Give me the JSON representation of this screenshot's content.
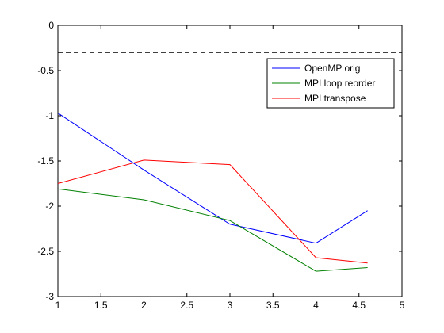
{
  "chart_data": {
    "type": "line",
    "title": "",
    "xlabel": "",
    "ylabel": "",
    "xlim": [
      1,
      5
    ],
    "ylim": [
      -3,
      0
    ],
    "x_ticks": [
      1,
      1.5,
      2,
      2.5,
      3,
      3.5,
      4,
      4.5,
      5
    ],
    "x_tick_labels": [
      "1",
      "1.5",
      "2",
      "2.5",
      "3",
      "3.5",
      "4",
      "4.5",
      "5"
    ],
    "y_ticks": [
      0,
      -0.5,
      -1,
      -1.5,
      -2,
      -2.5,
      -3
    ],
    "y_tick_labels": [
      "0",
      "-0.5",
      "-1",
      "-1.5",
      "-2",
      "-2.5",
      "-3"
    ],
    "grid": false,
    "legend_position": "top-right",
    "reference_line": {
      "y": -0.3,
      "style": "dashed",
      "color": "#000000"
    },
    "series": [
      {
        "name": "OpenMP orig",
        "color": "#0000ff",
        "x": [
          1,
          2,
          3,
          4,
          4.6
        ],
        "y": [
          -0.97,
          -1.6,
          -2.2,
          -2.41,
          -2.05
        ]
      },
      {
        "name": "MPI loop reorder",
        "color": "#008000",
        "x": [
          1,
          2,
          3,
          4,
          4.6
        ],
        "y": [
          -1.81,
          -1.93,
          -2.16,
          -2.72,
          -2.68
        ]
      },
      {
        "name": "MPI transpose",
        "color": "#ff0000",
        "x": [
          1,
          2,
          3,
          4,
          4.6
        ],
        "y": [
          -1.75,
          -1.49,
          -1.54,
          -2.57,
          -2.63
        ]
      }
    ]
  }
}
